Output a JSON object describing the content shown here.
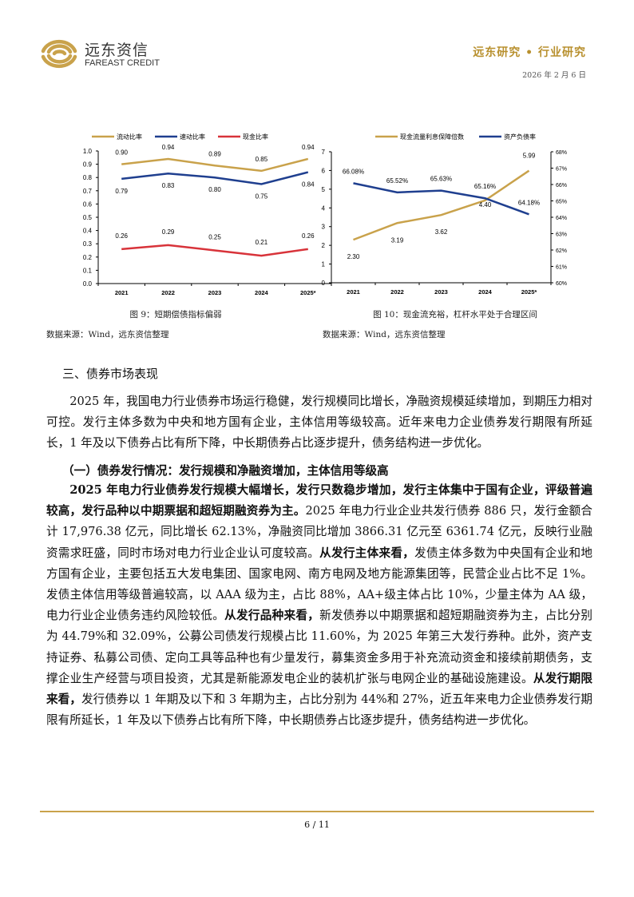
{
  "header": {
    "logo_cn": "远东资信",
    "logo_en": "FAREAST CREDIT",
    "title": "远东研究 • 行业研究",
    "date": "2026 年 2 月 6 日"
  },
  "chart_data": [
    {
      "type": "line",
      "title": "图 9：短期偿债指标偏弱",
      "categories": [
        "2021",
        "2022",
        "2023",
        "2024",
        "2025*"
      ],
      "series": [
        {
          "name": "流动比率",
          "color": "#c9a24b",
          "values": [
            0.9,
            0.94,
            0.89,
            0.85,
            0.94
          ],
          "labels": [
            "0.90",
            "0.94",
            "0.89",
            "0.85",
            "0.94"
          ]
        },
        {
          "name": "速动比率",
          "color": "#1f3f8f",
          "values": [
            0.79,
            0.83,
            0.8,
            0.75,
            0.84
          ],
          "labels": [
            "0.79",
            "0.83",
            "0.80",
            "0.75",
            "0.84"
          ]
        },
        {
          "name": "现金比率",
          "color": "#d8333a",
          "values": [
            0.26,
            0.29,
            0.25,
            0.21,
            0.26
          ],
          "labels": [
            "0.26",
            "0.29",
            "0.25",
            "0.21",
            "0.26"
          ]
        }
      ],
      "ylim": [
        0,
        1.0
      ],
      "yticks": [
        "0.0",
        "0.1",
        "0.2",
        "0.3",
        "0.4",
        "0.5",
        "0.6",
        "0.7",
        "0.8",
        "0.9",
        "1.0"
      ],
      "legend": "top",
      "source": "数据来源：Wind，远东资信整理"
    },
    {
      "type": "line",
      "title": "图 10：现金流充裕，杠杆水平处于合理区间",
      "categories": [
        "2021",
        "2022",
        "2023",
        "2024",
        "2025*"
      ],
      "series": [
        {
          "name": "现金流量利息保障倍数",
          "color": "#c9a24b",
          "axis": "left",
          "values": [
            2.3,
            3.19,
            3.62,
            4.4,
            5.99
          ],
          "labels": [
            "2.30",
            "3.19",
            "3.62",
            "4.40",
            "5.99"
          ]
        },
        {
          "name": "资产负债率",
          "color": "#1f3f8f",
          "axis": "right",
          "values": [
            66.08,
            65.52,
            65.63,
            65.16,
            64.18
          ],
          "labels": [
            "66.08%",
            "65.52%",
            "65.63%",
            "65.16%",
            "64.18%"
          ]
        }
      ],
      "ylim_left": [
        0,
        7
      ],
      "ylim_right": [
        60,
        68
      ],
      "yticks_left": [
        "0",
        "1",
        "2",
        "3",
        "4",
        "5",
        "6",
        "7"
      ],
      "yticks_right": [
        "60%",
        "61%",
        "62%",
        "63%",
        "64%",
        "65%",
        "66%",
        "67%",
        "68%"
      ],
      "legend": "top",
      "source": "数据来源：Wind，远东资信整理"
    }
  ],
  "section": {
    "heading": "三、债券市场表现",
    "intro": "2025 年，我国电力行业债券市场运行稳健，发行规模同比增长，净融资规模延续增加，到期压力相对可控。发行主体多数为中央和地方国有企业，主体信用等级较高。近年来电力企业债券发行期限有所延长，1 年及以下债券占比有所下降，中长期债券占比逐步提升，债务结构进一步优化。",
    "subheading": "（一）债券发行情况：发行规模和净融资增加，主体信用等级高",
    "body": [
      {
        "text": "2025 年电力行业债券发行规模大幅增长，发行只数稳步增加，发行主体集中于国有企业，评级普遍较高，发行品种以中期票据和超短期融资券为主。",
        "bold": true
      },
      {
        "text": "2025 年电力行业企业共发行债券 886 只，发行金额合计 17,976.38 亿元，同比增长 62.13%，净融资同比增加 3866.31 亿元至 6361.74 亿元，反映行业融资需求旺盛，同时市场对电力行业企业认可度较高。",
        "bold": false
      },
      {
        "text": "从发行主体来看，",
        "bold": true
      },
      {
        "text": "发债主体多数为中央国有企业和地方国有企业，主要包括五大发电集团、国家电网、南方电网及地方能源集团等，民营企业占比不足 1%。发债主体信用等级普遍较高，以 AAA 级为主，占比 88%，AA+级主体占比 10%，少量主体为 AA 级，电力行业企业债务违约风险较低。",
        "bold": false
      },
      {
        "text": "从发行品种来看，",
        "bold": true
      },
      {
        "text": "新发债券以中期票据和超短期融资券为主，占比分别为 44.79%和 32.09%，公募公司债发行规模占比 11.60%，为 2025 年第三大发行券种。此外，资产支持证券、私募公司债、定向工具等品种也有少量发行，募集资金多用于补充流动资金和接续前期债务，支撑企业生产经营与项目投资，尤其是新能源发电企业的装机扩张与电网企业的基础设施建设。",
        "bold": false
      },
      {
        "text": "从发行期限来看，",
        "bold": true
      },
      {
        "text": "发行债券以 1 年期及以下和 3 年期为主，占比分别为 44%和 27%，近五年来电力企业债券发行期限有所延长，1 年及以下债券占比有所下降，中长期债券占比逐步提升，债务结构进一步优化。",
        "bold": false
      }
    ]
  },
  "footer": {
    "page": "6 / 11"
  }
}
